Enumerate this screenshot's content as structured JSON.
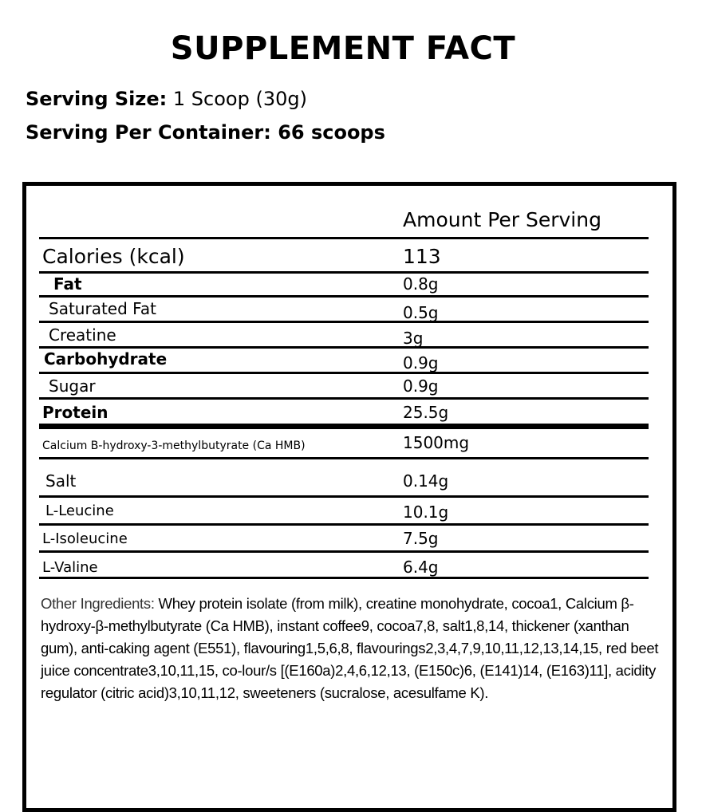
{
  "title": "SUPPLEMENT FACT",
  "serving_size": {
    "label": "Serving Size:",
    "value": "1 Scoop (30g)"
  },
  "servings_per_container": {
    "label": "Serving Per Container:",
    "value": "66 scoops"
  },
  "table": {
    "header": "Amount Per Serving",
    "calories": {
      "label": "Calories (kcal)",
      "value": "113"
    },
    "rows": [
      {
        "label": "Fat",
        "value": "0.8g"
      },
      {
        "label": "Saturated Fat",
        "value": "0.5g"
      },
      {
        "label": "Creatine",
        "value": "3g"
      },
      {
        "label": "Carbohydrate",
        "value": "0.9g"
      },
      {
        "label": "Sugar",
        "value": "0.9g"
      },
      {
        "label": "Protein",
        "value": "25.5g"
      },
      {
        "label": "Calcium B-hydroxy-3-methylbutyrate (Ca HMB)",
        "value": "1500mg"
      },
      {
        "label": "Salt",
        "value": "0.14g"
      },
      {
        "label": "L-Leucine",
        "value": "10.1g"
      },
      {
        "label": "L-Isoleucine",
        "value": "7.5g"
      },
      {
        "label": "L-Valine",
        "value": "6.4g"
      }
    ]
  },
  "other_ingredients": {
    "label": "Other Ingredients:",
    "text": "Whey protein isolate (from milk), creatine monohydrate, cocoa1, Calcium β-hydroxy-β-methylbutyrate (Ca HMB), instant coffee9, cocoa7,8, salt1,8,14, thickener (xanthan gum), anti-caking agent (E551), flavouring1,5,6,8, flavourings2,3,4,7,9,10,11,12,13,14,15, red beet juice concentrate3,10,11,15, co-lour/s [(E160a)2,4,6,12,13, (E150c)6, (E141)14, (E163)11], acidity regulator (citric acid)3,10,11,12, sweeteners (sucralose, acesulfame K)."
  }
}
